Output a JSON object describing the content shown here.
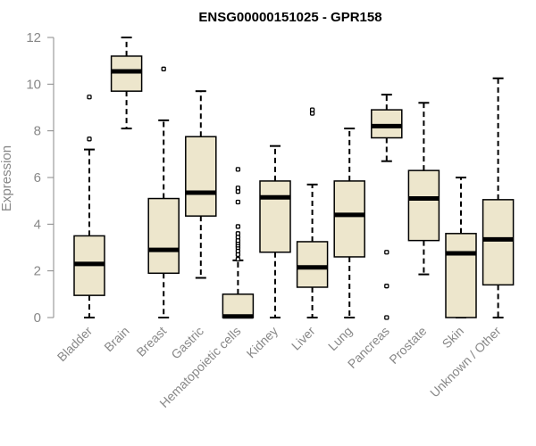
{
  "chart_data": {
    "type": "boxplot",
    "title": "ENSG00000151025 - GPR158",
    "xlabel": "",
    "ylabel": "Expression",
    "ylim": [
      0,
      12
    ],
    "yticks": [
      0,
      2,
      4,
      6,
      8,
      10,
      12
    ],
    "box_fill": "#ede6cc",
    "box_stroke": "#000000",
    "axis_color": "#888888",
    "categories": [
      "Bladder",
      "Brain",
      "Breast",
      "Gastric",
      "Hematopoietic cells",
      "Kidney",
      "Liver",
      "Lung",
      "Pancreas",
      "Prostate",
      "Skin",
      "Unknown / Other"
    ],
    "boxes": [
      {
        "name": "Bladder",
        "min": 0.0,
        "q1": 0.95,
        "median": 2.3,
        "q3": 3.5,
        "max": 7.2,
        "outliers": [
          7.65,
          9.45
        ]
      },
      {
        "name": "Brain",
        "min": 8.1,
        "q1": 9.7,
        "median": 10.55,
        "q3": 11.2,
        "max": 12.0,
        "outliers": []
      },
      {
        "name": "Breast",
        "min": 0.0,
        "q1": 1.9,
        "median": 2.9,
        "q3": 5.1,
        "max": 8.45,
        "outliers": [
          10.65
        ]
      },
      {
        "name": "Gastric",
        "min": 1.7,
        "q1": 4.35,
        "median": 5.35,
        "q3": 7.75,
        "max": 9.7,
        "outliers": []
      },
      {
        "name": "Hematopoietic cells",
        "min": 0.0,
        "q1": 0.0,
        "median": 0.05,
        "q3": 1.0,
        "max": 2.45,
        "outliers": [
          2.5,
          2.7,
          2.85,
          3.0,
          3.1,
          3.2,
          3.3,
          3.45,
          3.6,
          3.9,
          4.95,
          5.4,
          5.55,
          6.35
        ]
      },
      {
        "name": "Kidney",
        "min": 0.0,
        "q1": 2.8,
        "median": 5.15,
        "q3": 5.85,
        "max": 7.35,
        "outliers": []
      },
      {
        "name": "Liver",
        "min": 0.0,
        "q1": 1.3,
        "median": 2.15,
        "q3": 3.25,
        "max": 5.7,
        "outliers": [
          8.75,
          8.9
        ]
      },
      {
        "name": "Lung",
        "min": 0.0,
        "q1": 2.6,
        "median": 4.4,
        "q3": 5.85,
        "max": 8.1,
        "outliers": []
      },
      {
        "name": "Pancreas",
        "min": 6.7,
        "q1": 7.7,
        "median": 8.2,
        "q3": 8.9,
        "max": 9.55,
        "outliers": [
          2.8,
          1.35,
          0.0
        ]
      },
      {
        "name": "Prostate",
        "min": 1.85,
        "q1": 3.3,
        "median": 5.1,
        "q3": 6.3,
        "max": 9.2,
        "outliers": []
      },
      {
        "name": "Skin",
        "min": 0.0,
        "q1": 0.0,
        "median": 2.75,
        "q3": 3.6,
        "max": 6.0,
        "outliers": []
      },
      {
        "name": "Unknown / Other",
        "min": 0.0,
        "q1": 1.4,
        "median": 3.35,
        "q3": 5.05,
        "max": 10.25,
        "outliers": []
      }
    ]
  }
}
